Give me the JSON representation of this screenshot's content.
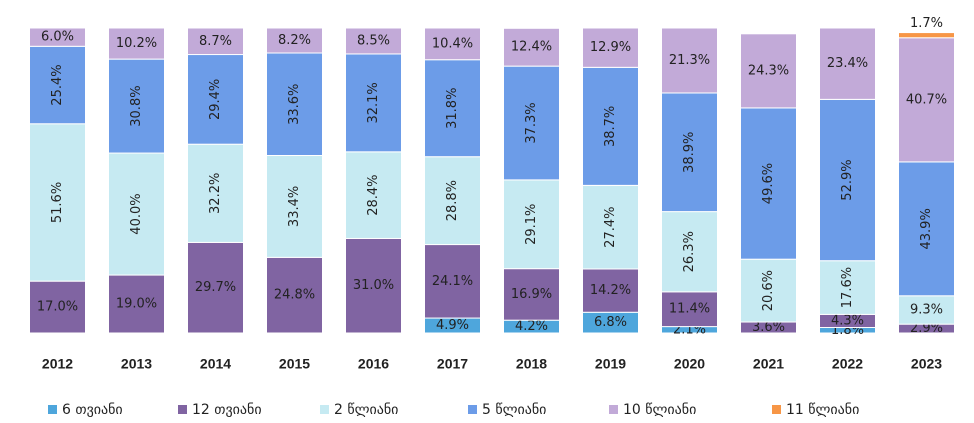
{
  "chart_data": {
    "type": "stacked_bar",
    "categories": [
      "2012",
      "2013",
      "2014",
      "2015",
      "2016",
      "2017",
      "2018",
      "2019",
      "2020",
      "2021",
      "2022",
      "2023"
    ],
    "ylim": [
      0,
      100
    ],
    "series": [
      {
        "name": "6 თვიანი",
        "color": "#4ea6dc",
        "values": [
          null,
          null,
          null,
          null,
          null,
          4.9,
          4.2,
          6.8,
          2.1,
          null,
          1.8,
          null
        ],
        "value_labels": [
          null,
          null,
          null,
          null,
          null,
          "4.9%",
          "4.2%",
          "6.8%",
          "2.1%",
          null,
          "1.8%",
          null
        ]
      },
      {
        "name": "12 თვიანი",
        "color": "#8064a2",
        "values": [
          17.0,
          19.0,
          29.7,
          24.8,
          31.0,
          24.1,
          16.9,
          14.2,
          11.4,
          3.6,
          4.3,
          2.9
        ],
        "value_labels": [
          "17.0%",
          "19.0%",
          "29.7%",
          "24.8%",
          "31.0%",
          "24.1%",
          "16.9%",
          "14.2%",
          "11.4%",
          "3.6%",
          "4.3%",
          "2.9%"
        ]
      },
      {
        "name": "2 წლიანი",
        "color": "#c6eaf2",
        "values": [
          51.6,
          40.0,
          32.2,
          33.4,
          28.4,
          28.8,
          29.1,
          27.4,
          26.3,
          20.6,
          17.6,
          9.3
        ],
        "value_labels": [
          "51.6%",
          "40.0%",
          "32.2%",
          "33.4%",
          "28.4%",
          "28.8%",
          "29.1%",
          "27.4%",
          "26.3%",
          "20.6%",
          "17.6%",
          "9.3%"
        ]
      },
      {
        "name": "5 წლიანი",
        "color": "#6c9ce8",
        "values": [
          25.4,
          30.8,
          29.4,
          33.6,
          32.1,
          31.8,
          37.3,
          38.7,
          38.9,
          49.6,
          52.9,
          43.9
        ],
        "value_labels": [
          "25.4%",
          "30.8%",
          "29.4%",
          "33.6%",
          "32.1%",
          "31.8%",
          "37.3%",
          "38.7%",
          "38.9%",
          "49.6%",
          "52.9%",
          "43.9%"
        ]
      },
      {
        "name": "10 წლიანი",
        "color": "#c2aad8",
        "values": [
          6.0,
          10.2,
          8.7,
          8.2,
          8.5,
          10.4,
          12.4,
          12.9,
          21.3,
          24.3,
          23.4,
          40.7
        ],
        "value_labels": [
          "6.0%",
          "10.2%",
          "8.7%",
          "8.2%",
          "8.5%",
          "10.4%",
          "12.4%",
          "12.9%",
          "21.3%",
          "24.3%",
          "23.4%",
          "40.7%"
        ]
      },
      {
        "name": "11 წლიანი",
        "color": "#f79646",
        "values": [
          null,
          null,
          null,
          null,
          null,
          null,
          null,
          null,
          null,
          null,
          null,
          1.7
        ],
        "value_labels": [
          null,
          null,
          null,
          null,
          null,
          null,
          null,
          null,
          null,
          null,
          null,
          "1.7%"
        ]
      }
    ]
  }
}
